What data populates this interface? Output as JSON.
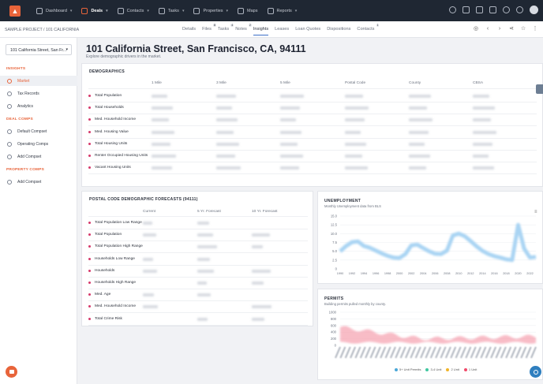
{
  "nav": {
    "items": [
      {
        "label": "Dashboard",
        "icon": "home-icon",
        "caret": true,
        "active": false
      },
      {
        "label": "Deals",
        "icon": "deals-icon",
        "caret": true,
        "active": true
      },
      {
        "label": "Contacts",
        "icon": "contacts-icon",
        "caret": true,
        "active": false
      },
      {
        "label": "Tasks",
        "icon": "tasks-icon",
        "caret": true,
        "active": false
      },
      {
        "label": "Properties",
        "icon": "building-icon",
        "caret": true,
        "active": false
      },
      {
        "label": "Maps",
        "icon": "globe-icon",
        "caret": false,
        "active": false
      },
      {
        "label": "Reports",
        "icon": "report-icon",
        "caret": true,
        "active": false
      }
    ]
  },
  "breadcrumb": "SAMPLE PROJECT / 101 CALIFORNIA",
  "tabs": [
    {
      "label": "Details",
      "badge": ""
    },
    {
      "label": "Files",
      "badge": "8"
    },
    {
      "label": "Tasks",
      "badge": "4"
    },
    {
      "label": "Notes",
      "badge": "2"
    },
    {
      "label": "Insights",
      "badge": "",
      "active": true
    },
    {
      "label": "Leases",
      "badge": ""
    },
    {
      "label": "Loan Quotes",
      "badge": ""
    },
    {
      "label": "Dispositions",
      "badge": ""
    },
    {
      "label": "Contacts",
      "badge": "1"
    }
  ],
  "sidebar": {
    "property_select": "101 California Street, San Fr...",
    "insights_header": "INSIGHTS",
    "market": "Market",
    "tax_records": "Tax Records",
    "analytics": "Analytics",
    "deal_comps_header": "DEAL COMPS",
    "default_compset": "Default Compset",
    "operating_comps": "Operating Comps",
    "add_compset_deal": "Add Compset",
    "property_comps_header": "PROPERTY COMPS",
    "add_compset_property": "Add Compset"
  },
  "page": {
    "title": "101 California Street, San Francisco, CA, 94111",
    "subtitle": "Explore demographic drivers in the market."
  },
  "demographics": {
    "header": "DEMOGRAPHICS",
    "columns": [
      "1 Mile",
      "3 Mile",
      "5 Mile",
      "Postal Code",
      "County",
      "CBSA"
    ],
    "rows": [
      "Total Population",
      "Total Households",
      "Med. Household Income",
      "Med. Housing Value",
      "Total Housing Units",
      "Renter Occupied Housing Units",
      "Vacant Housing Units"
    ]
  },
  "forecasts": {
    "header": "POSTAL CODE DEMOGRAPHIC FORECASTS (94111)",
    "columns": [
      "Current",
      "5 Yr. Forecast",
      "10 Yr. Forecast"
    ],
    "rows": [
      "Total Population Low Range",
      "Total Population",
      "Total Population High Range",
      "Households Low Range",
      "Households",
      "Households High Range",
      "Med. Age",
      "Med. Household Income",
      "Total Crime Risk"
    ]
  },
  "unemployment": {
    "header": "UNEMPLOYMENT",
    "subtitle": "Monthly Unemployment data from BLS",
    "chart_data": {
      "type": "line",
      "title": "UNEMPLOYMENT",
      "subtitle": "Monthly Unemployment data from BLS",
      "ylim": [
        0,
        15
      ],
      "yticks": [
        "0",
        "2.5",
        "5.0",
        "7.5",
        "10.0",
        "12.5",
        "15.0"
      ],
      "xticks": [
        "1990",
        "1992",
        "1994",
        "1996",
        "1998",
        "2000",
        "2002",
        "2004",
        "2006",
        "2008",
        "2010",
        "2012",
        "2014",
        "2016",
        "2018",
        "2020",
        "2022"
      ],
      "series": [
        {
          "values": [
            [
              1990,
              5.0
            ],
            [
              1991,
              6.5
            ],
            [
              1992,
              7.6
            ],
            [
              1993,
              7.8
            ],
            [
              1994,
              6.5
            ],
            [
              1995,
              6.0
            ],
            [
              1996,
              5.2
            ],
            [
              1997,
              4.4
            ],
            [
              1998,
              3.7
            ],
            [
              1999,
              3.2
            ],
            [
              2000,
              3.1
            ],
            [
              2001,
              4.2
            ],
            [
              2002,
              6.7
            ],
            [
              2003,
              6.9
            ],
            [
              2004,
              5.9
            ],
            [
              2005,
              5.0
            ],
            [
              2006,
              4.3
            ],
            [
              2007,
              4.2
            ],
            [
              2008,
              5.2
            ],
            [
              2009,
              9.5
            ],
            [
              2010,
              10.0
            ],
            [
              2011,
              9.3
            ],
            [
              2012,
              7.9
            ],
            [
              2013,
              6.4
            ],
            [
              2014,
              5.1
            ],
            [
              2015,
              4.2
            ],
            [
              2016,
              3.6
            ],
            [
              2017,
              3.2
            ],
            [
              2018,
              2.7
            ],
            [
              2019,
              2.5
            ],
            [
              2020,
              12.5
            ],
            [
              2020.6,
              8.5
            ],
            [
              2021,
              5.8
            ],
            [
              2022,
              3.2
            ],
            [
              2023,
              3.4
            ]
          ]
        }
      ]
    }
  },
  "permits": {
    "header": "PERMITS",
    "subtitle": "Building permits pulled monthly by county.",
    "chart_data": {
      "type": "area",
      "title": "PERMITS",
      "subtitle": "Building permits pulled monthly by county.",
      "ylim": [
        0,
        1000
      ],
      "yticks": [
        "0",
        "200",
        "400",
        "600",
        "800",
        "1000"
      ],
      "series": [
        {
          "name": "5+ Unit Permits",
          "color": "#4aa7d8"
        },
        {
          "name": "3-4 Unit",
          "color": "#41c7a0"
        },
        {
          "name": "2 Unit",
          "color": "#f0b429"
        },
        {
          "name": "1 Unit",
          "color": "#f04a6a"
        }
      ]
    }
  }
}
